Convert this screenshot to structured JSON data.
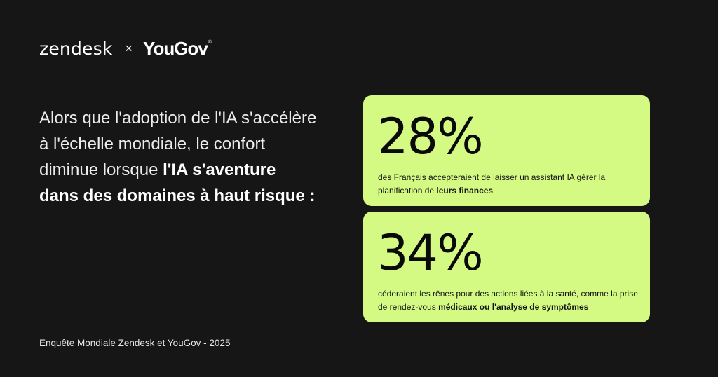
{
  "brand": {
    "zendesk": "zendesk",
    "separator": "×",
    "yougov": "YouGov",
    "registered": "®"
  },
  "headline": {
    "part1": "Alors que l'adoption de l'IA s'accélère à l'échelle mondiale, le confort diminue lorsque ",
    "bold": "l'IA s'aventure dans des domaines à haut risque :"
  },
  "stats": [
    {
      "value": "28%",
      "text": "des Français accepteraient de laisser un assistant IA gérer la planification de ",
      "bold": "leurs finances"
    },
    {
      "value": "34%",
      "text": "céderaient les rênes pour des actions liées à la santé, comme la prise de rendez-vous ",
      "bold": "médicaux ou l'analyse de symptômes"
    }
  ],
  "footer": "Enquête Mondiale Zendesk et YouGov - 2025",
  "colors": {
    "background": "#161616",
    "card": "#d4fa84",
    "text_light": "#f2f2f2",
    "text_dark": "#0d0d0d"
  }
}
